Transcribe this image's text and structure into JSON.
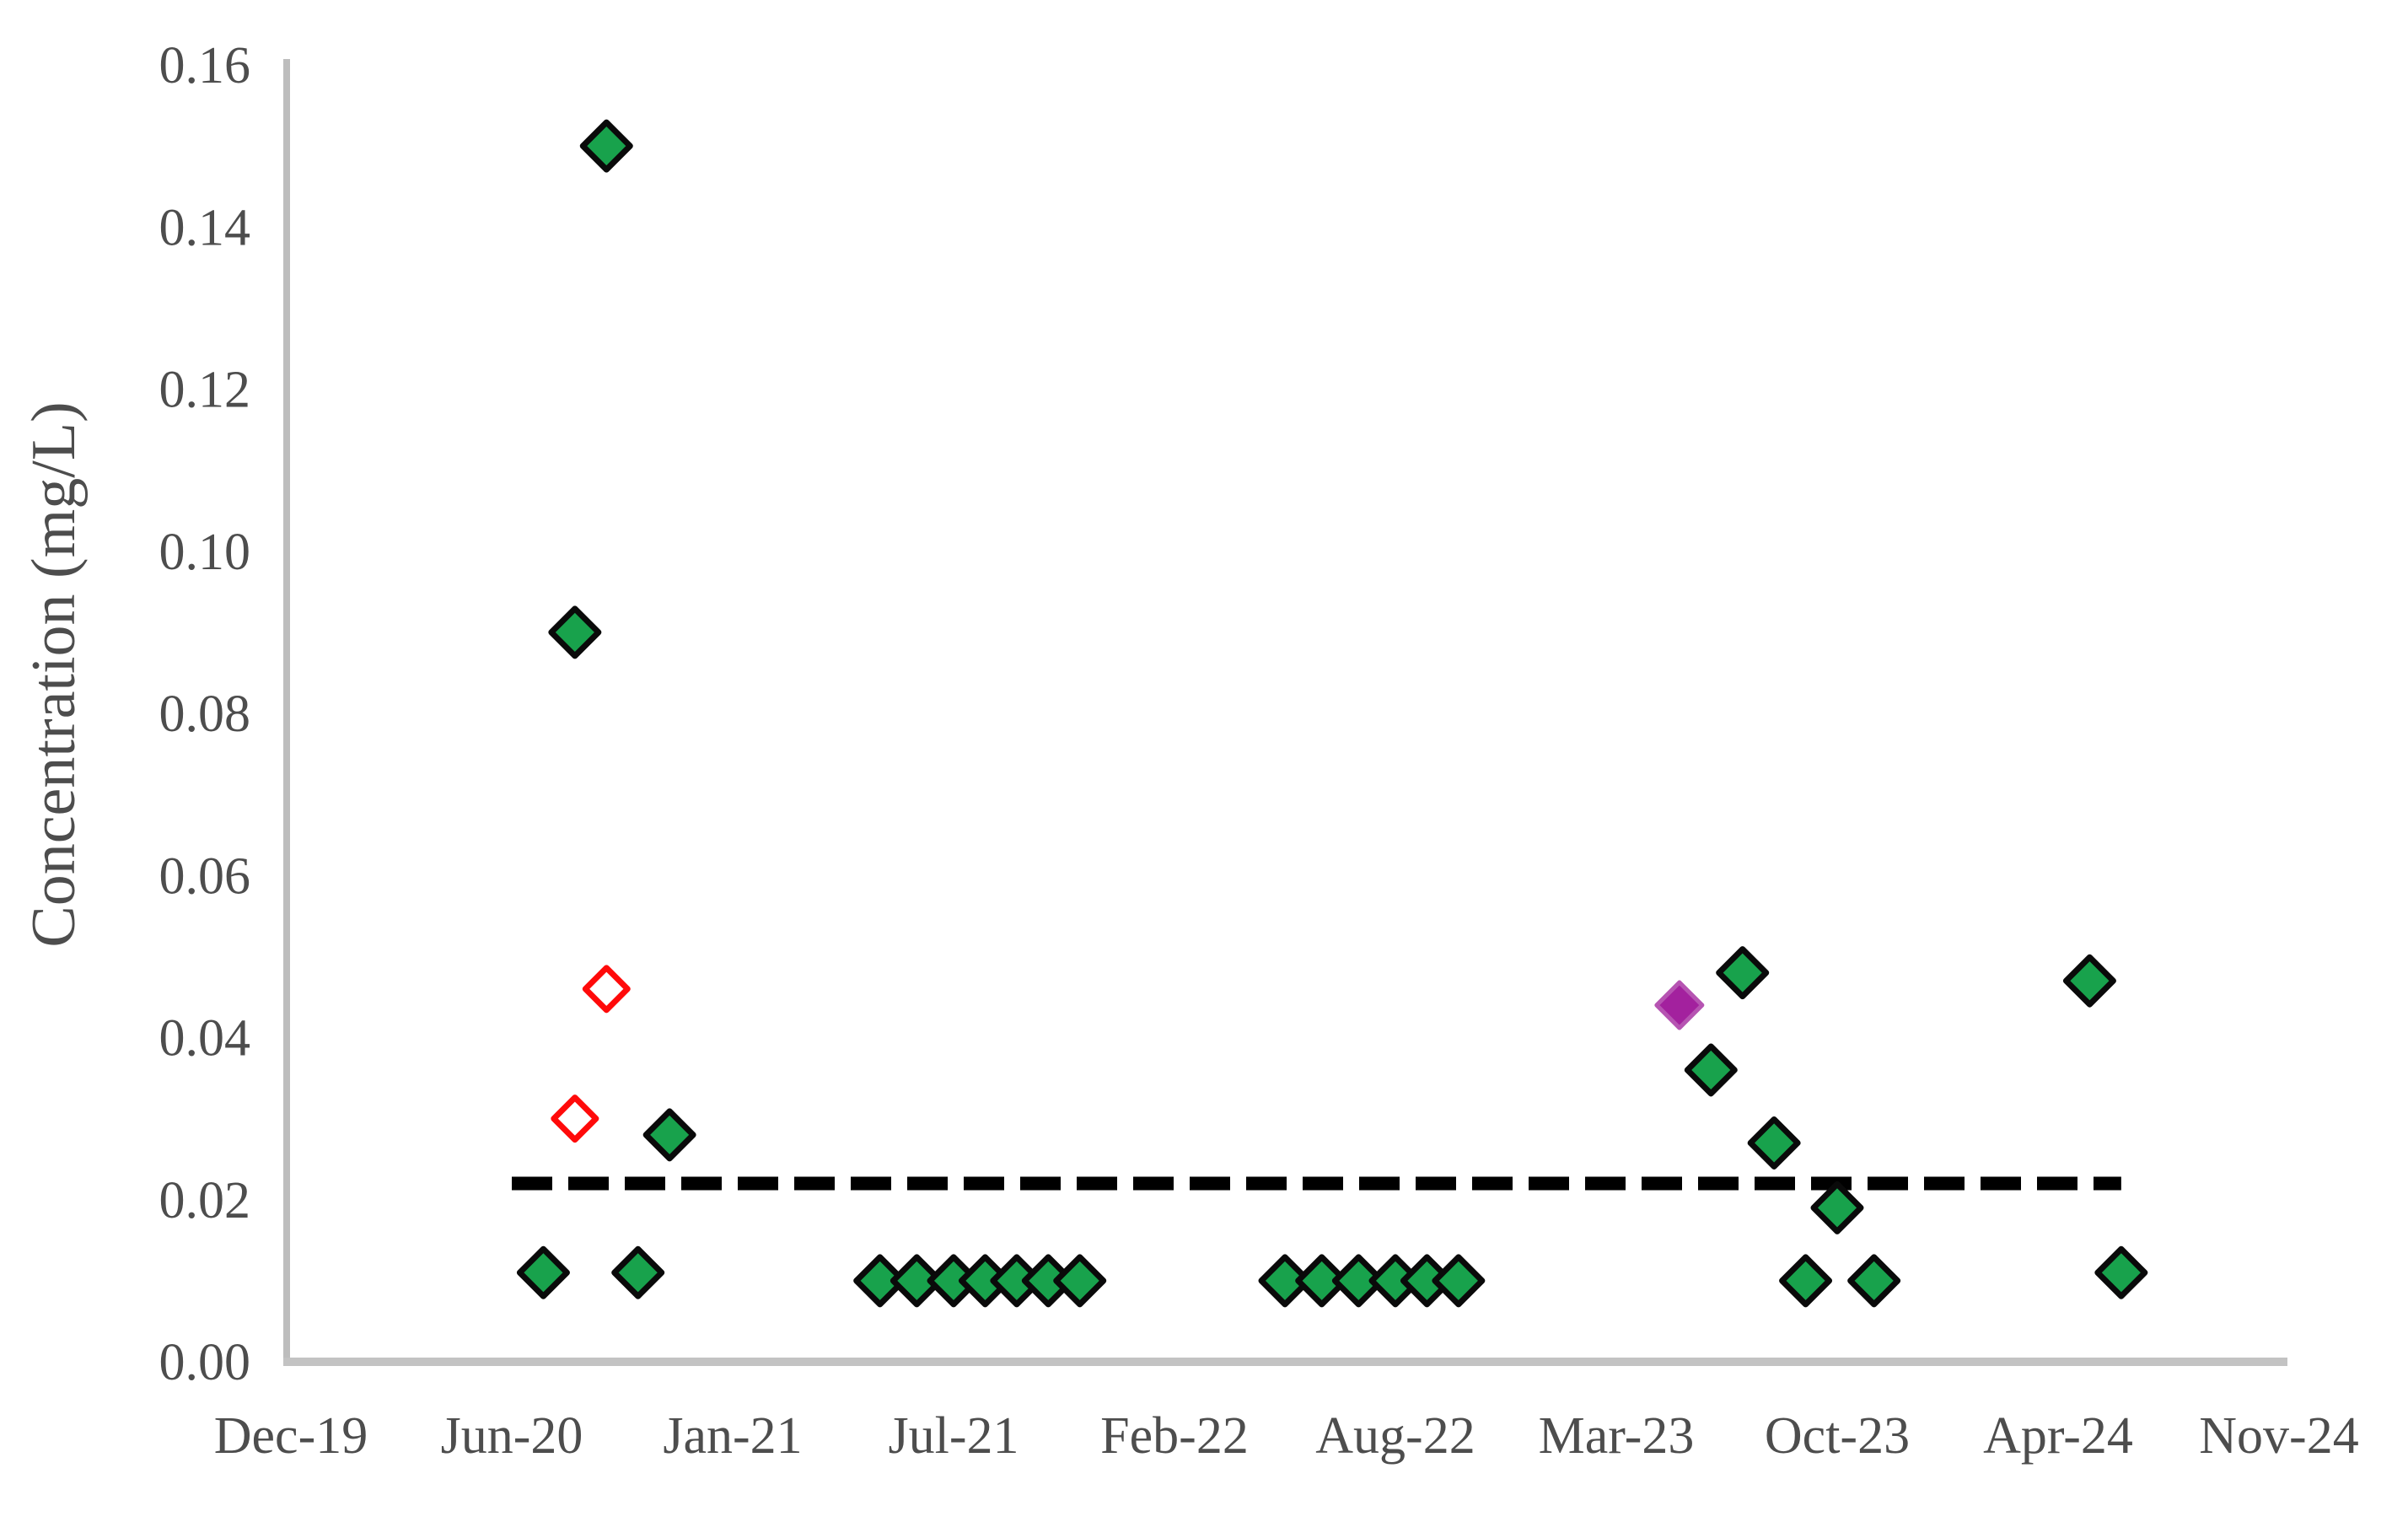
{
  "chart_data": {
    "type": "scatter",
    "title": "",
    "xlabel": "",
    "ylabel": "Concentration (mg/L)",
    "ylim": [
      0.0,
      0.16
    ],
    "grid": false,
    "legend": "none",
    "y_ticks": [
      {
        "label": "0.00",
        "value": 0.0
      },
      {
        "label": "0.02",
        "value": 0.02
      },
      {
        "label": "0.04",
        "value": 0.04
      },
      {
        "label": "0.06",
        "value": 0.06
      },
      {
        "label": "0.08",
        "value": 0.08
      },
      {
        "label": "0.10",
        "value": 0.1
      },
      {
        "label": "0.12",
        "value": 0.12
      },
      {
        "label": "0.14",
        "value": 0.14
      },
      {
        "label": "0.16",
        "value": 0.16
      }
    ],
    "x_ticks": [
      {
        "label": "Dec-19"
      },
      {
        "label": "Jun-20"
      },
      {
        "label": "Jan-21"
      },
      {
        "label": "Jul-21"
      },
      {
        "label": "Feb-22"
      },
      {
        "label": "Aug-22"
      },
      {
        "label": "Mar-23"
      },
      {
        "label": "Oct-23"
      },
      {
        "label": "Apr-24"
      },
      {
        "label": "Nov-24"
      }
    ],
    "series": [
      {
        "name": "filled_green_diamonds",
        "marker": "diamond-filled",
        "fill": "#18A24C",
        "outline": "#0a0a0a",
        "points": [
          {
            "x": "Jul-20",
            "y": 0.011
          },
          {
            "x": "Aug-20",
            "y": 0.09
          },
          {
            "x": "Sep-20",
            "y": 0.15
          },
          {
            "x": "Oct-20",
            "y": 0.011
          },
          {
            "x": "Nov-20",
            "y": 0.028
          },
          {
            "x": "May-21",
            "y": 0.01
          },
          {
            "x": "Jun-21",
            "y": 0.01
          },
          {
            "x": "Jul-21",
            "y": 0.01
          },
          {
            "x": "Aug-21",
            "y": 0.01
          },
          {
            "x": "Sep-21",
            "y": 0.01
          },
          {
            "x": "Oct-21",
            "y": 0.01
          },
          {
            "x": "Nov-21",
            "y": 0.01
          },
          {
            "x": "May-22",
            "y": 0.01
          },
          {
            "x": "Jun-22",
            "y": 0.01
          },
          {
            "x": "Jul-22",
            "y": 0.01
          },
          {
            "x": "Aug-22",
            "y": 0.01
          },
          {
            "x": "Sep-22",
            "y": 0.01
          },
          {
            "x": "Oct-22",
            "y": 0.01
          },
          {
            "x": "Jun-23",
            "y": 0.036
          },
          {
            "x": "Jul-23",
            "y": 0.048
          },
          {
            "x": "Aug-23",
            "y": 0.027
          },
          {
            "x": "Sep-23",
            "y": 0.01
          },
          {
            "x": "Oct-23",
            "y": 0.019
          },
          {
            "x": "Nov-23",
            "y": 0.01
          },
          {
            "x": "May-24",
            "y": 0.047
          },
          {
            "x": "Jun-24",
            "y": 0.011
          }
        ]
      },
      {
        "name": "open_red_diamonds",
        "marker": "diamond-open",
        "fill": "#ffffff",
        "outline": "#ff0a0a",
        "points": [
          {
            "x": "Aug-20",
            "y": 0.03
          },
          {
            "x": "Sep-20",
            "y": 0.046
          }
        ]
      },
      {
        "name": "filled_purple_diamond",
        "marker": "diamond-filled-purple",
        "fill": "#A3219E",
        "outline": "#B654B2",
        "points": [
          {
            "x": "May-23",
            "y": 0.044
          }
        ]
      }
    ],
    "reference_line": {
      "value": 0.022,
      "from": "Jun-20",
      "to": "Jun-24",
      "style": "dashed",
      "color": "#000000"
    }
  }
}
